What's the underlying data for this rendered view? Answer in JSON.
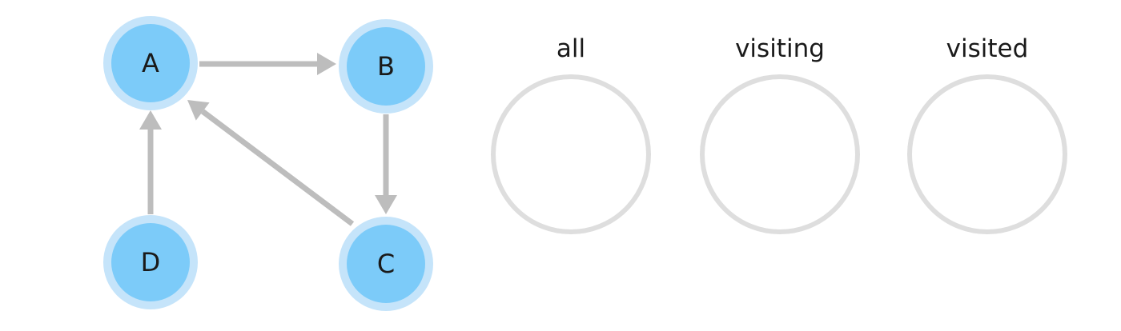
{
  "colors": {
    "node_fill": "#7ccbf9",
    "node_halo": "#c5e4fa",
    "edge": "#bdbdbd",
    "set_ring": "#dedede",
    "text": "#1a1a1a"
  },
  "graph": {
    "nodes": [
      {
        "id": "A",
        "label": "A"
      },
      {
        "id": "B",
        "label": "B"
      },
      {
        "id": "C",
        "label": "C"
      },
      {
        "id": "D",
        "label": "D"
      }
    ],
    "edges": [
      {
        "from": "A",
        "to": "B"
      },
      {
        "from": "B",
        "to": "C"
      },
      {
        "from": "C",
        "to": "A"
      },
      {
        "from": "D",
        "to": "A"
      }
    ]
  },
  "sets": [
    {
      "id": "all",
      "label": "all"
    },
    {
      "id": "visiting",
      "label": "visiting"
    },
    {
      "id": "visited",
      "label": "visited"
    }
  ]
}
